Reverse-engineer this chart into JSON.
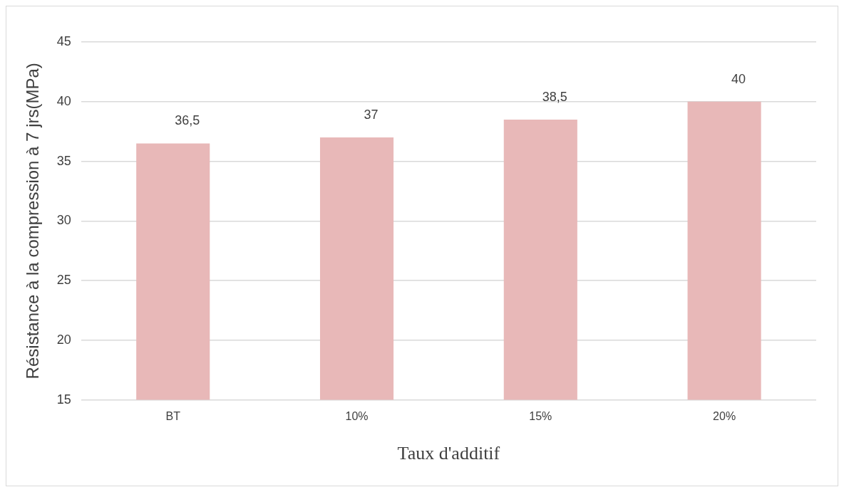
{
  "chart_data": {
    "type": "bar",
    "xlabel": "Taux d'additif",
    "ylabel": "Résistance à la compression à 7 jrs(MPa)",
    "categories": [
      "BT",
      "10%",
      "15%",
      "20%"
    ],
    "values": [
      36.5,
      37,
      38.5,
      40
    ],
    "color": "#e8b8b8",
    "ylim": [
      15,
      45
    ],
    "yticks": [
      15,
      20,
      25,
      30,
      35,
      40,
      45
    ],
    "grid": "y",
    "value_labels": [
      "36,5",
      "37",
      "38,5",
      "40"
    ]
  }
}
